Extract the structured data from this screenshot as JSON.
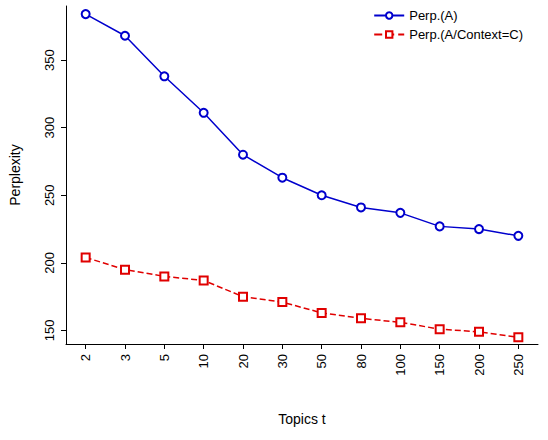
{
  "chart_data": {
    "type": "line",
    "x_label": "Topics t",
    "y_label": "Perplexity",
    "categories": [
      "2",
      "3",
      "5",
      "10",
      "20",
      "30",
      "50",
      "80",
      "100",
      "150",
      "200",
      "250"
    ],
    "series": [
      {
        "name": "Perp.(A)",
        "color": "#0000cd",
        "marker": "circle",
        "line_style": "solid",
        "values": [
          384,
          368,
          338,
          311,
          280,
          263,
          250,
          241,
          237,
          227,
          225,
          220
        ]
      },
      {
        "name": "Perp.(A/Context=C)",
        "color": "#e00000",
        "marker": "square",
        "line_style": "dashed",
        "values": [
          204,
          195,
          190,
          187,
          175,
          171,
          163,
          159,
          156,
          151,
          149,
          145
        ]
      }
    ],
    "ylim": [
      140,
      390
    ],
    "yticks": [
      150,
      200,
      250,
      300,
      350
    ],
    "grid": false,
    "legend": "top-right"
  }
}
